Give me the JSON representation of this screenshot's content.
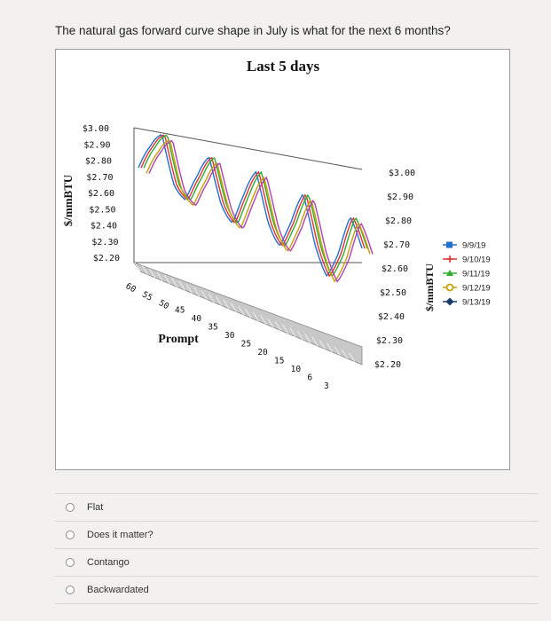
{
  "question": "The natural gas forward curve shape in July is what for the next 6 months?",
  "chart": {
    "title": "Last 5 days",
    "left_axis_label": "$/mmBTU",
    "right_axis_label": "$/mmBTU",
    "depth_axis_label": "Prompt",
    "left_ticks": [
      "$3.00",
      "$2.90",
      "$2.80",
      "$2.70",
      "$2.60",
      "$2.50",
      "$2.40",
      "$2.30",
      "$2.20"
    ],
    "right_ticks": [
      "$3.00",
      "$2.90",
      "$2.80",
      "$2.70",
      "$2.60",
      "$2.50",
      "$2.40",
      "$2.30",
      "$2.20"
    ],
    "depth_ticks": [
      "60",
      "55",
      "50",
      "45",
      "40",
      "35",
      "30",
      "25",
      "20",
      "15",
      "10",
      "6",
      "3"
    ],
    "colors": {
      "s1": "#1f6fd0",
      "s2": "#e03030",
      "s3": "#2faa2f",
      "s4": "#c8a000",
      "s5": "#b040b0"
    }
  },
  "chart_data": {
    "type": "line",
    "title": "Last 5 days",
    "ylabel": "$/mmBTU",
    "xlabel": "Prompt",
    "ylim": [
      2.2,
      3.0
    ],
    "x": [
      60,
      57,
      54,
      51,
      48,
      45,
      42,
      39,
      36,
      33,
      30,
      27,
      24,
      21,
      18,
      15,
      12,
      9,
      6,
      3
    ],
    "series": [
      {
        "name": "9/9/19",
        "values": [
          2.5,
          2.6,
          2.75,
          2.55,
          2.45,
          2.55,
          2.72,
          2.55,
          2.45,
          2.58,
          2.74,
          2.55,
          2.45,
          2.55,
          2.72,
          2.52,
          2.4,
          2.5,
          2.7,
          2.6
        ]
      },
      {
        "name": "9/10/19",
        "values": [
          2.52,
          2.62,
          2.77,
          2.57,
          2.47,
          2.57,
          2.74,
          2.57,
          2.47,
          2.6,
          2.76,
          2.57,
          2.47,
          2.57,
          2.74,
          2.54,
          2.42,
          2.52,
          2.72,
          2.62
        ]
      },
      {
        "name": "9/11/19",
        "values": [
          2.54,
          2.64,
          2.79,
          2.59,
          2.49,
          2.59,
          2.76,
          2.59,
          2.49,
          2.62,
          2.78,
          2.59,
          2.49,
          2.59,
          2.76,
          2.56,
          2.44,
          2.54,
          2.74,
          2.64
        ]
      },
      {
        "name": "9/12/19",
        "values": [
          2.53,
          2.63,
          2.78,
          2.58,
          2.48,
          2.58,
          2.75,
          2.58,
          2.48,
          2.61,
          2.77,
          2.58,
          2.48,
          2.58,
          2.75,
          2.55,
          2.43,
          2.53,
          2.73,
          2.63
        ]
      },
      {
        "name": "9/13/19",
        "values": [
          2.55,
          2.65,
          2.8,
          2.6,
          2.5,
          2.6,
          2.77,
          2.6,
          2.5,
          2.63,
          2.79,
          2.6,
          2.5,
          2.6,
          2.77,
          2.57,
          2.45,
          2.55,
          2.75,
          2.65
        ]
      }
    ]
  },
  "legend": [
    {
      "label": "9/9/19",
      "color": "#1f6fd0",
      "marker": "square"
    },
    {
      "label": "9/10/19",
      "color": "#e03030",
      "marker": "plus"
    },
    {
      "label": "9/11/19",
      "color": "#2faa2f",
      "marker": "triangle"
    },
    {
      "label": "9/12/19",
      "color": "#c8a000",
      "marker": "circle"
    },
    {
      "label": "9/13/19",
      "color": "#1a3a6a",
      "marker": "diamond"
    }
  ],
  "options": [
    {
      "label": "Flat"
    },
    {
      "label": "Does it matter?"
    },
    {
      "label": "Contango"
    },
    {
      "label": "Backwardated"
    }
  ]
}
